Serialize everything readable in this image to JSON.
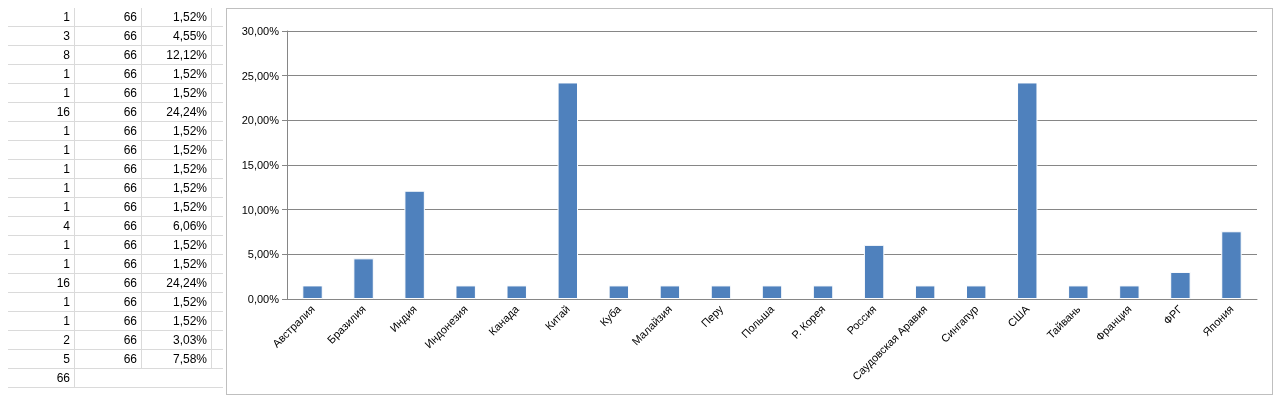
{
  "chart_data": [
    {
      "type": "other",
      "annotations": [
        "1",
        "66",
        "1,52%",
        "3",
        "66",
        "4,55%",
        "8",
        "66",
        "12,12%",
        "1",
        "66",
        "1,52%",
        "1",
        "66",
        "1,52%",
        "16",
        "66",
        "24,24%",
        "1",
        "66",
        "1,52%",
        "1",
        "66",
        "1,52%",
        "1",
        "66",
        "1,52%",
        "1",
        "66",
        "1,52%",
        "1",
        "66",
        "1,52%",
        "4",
        "66",
        "6,06%",
        "1",
        "66",
        "1,52%",
        "1",
        "66",
        "1,52%",
        "16",
        "66",
        "24,24%",
        "1",
        "66",
        "1,52%",
        "1",
        "66",
        "1,52%",
        "2",
        "66",
        "3,03%",
        "5",
        "66",
        "7,58%",
        "66"
      ]
    },
    {
      "type": "bar",
      "categories": [
        "Австралия",
        "Бразилия",
        "Индия",
        "Индонезия",
        "Канада",
        "Китай",
        "Куба",
        "Малайзия",
        "Перу",
        "Польша",
        "Р. Корея",
        "Россия",
        "Саудовская Аравия",
        "Сингапур",
        "США",
        "Тайвань",
        "Франция",
        "ФРГ",
        "Япония"
      ],
      "values": [
        1.52,
        4.55,
        12.12,
        1.52,
        1.52,
        24.24,
        1.52,
        1.52,
        1.52,
        1.52,
        1.52,
        6.06,
        1.52,
        1.52,
        24.24,
        1.52,
        1.52,
        3.03,
        7.58
      ],
      "color": "#4f81bd",
      "ylim": [
        0,
        30
      ],
      "yticks": [
        {
          "value": 0,
          "label": "0,00%"
        },
        {
          "value": 5,
          "label": "5,00%"
        },
        {
          "value": 10,
          "label": "10,00%"
        },
        {
          "value": 15,
          "label": "15,00%"
        },
        {
          "value": 20,
          "label": "20,00%"
        },
        {
          "value": 25,
          "label": "25,00%"
        },
        {
          "value": 30,
          "label": "30,00%"
        }
      ],
      "grid": "y"
    }
  ]
}
